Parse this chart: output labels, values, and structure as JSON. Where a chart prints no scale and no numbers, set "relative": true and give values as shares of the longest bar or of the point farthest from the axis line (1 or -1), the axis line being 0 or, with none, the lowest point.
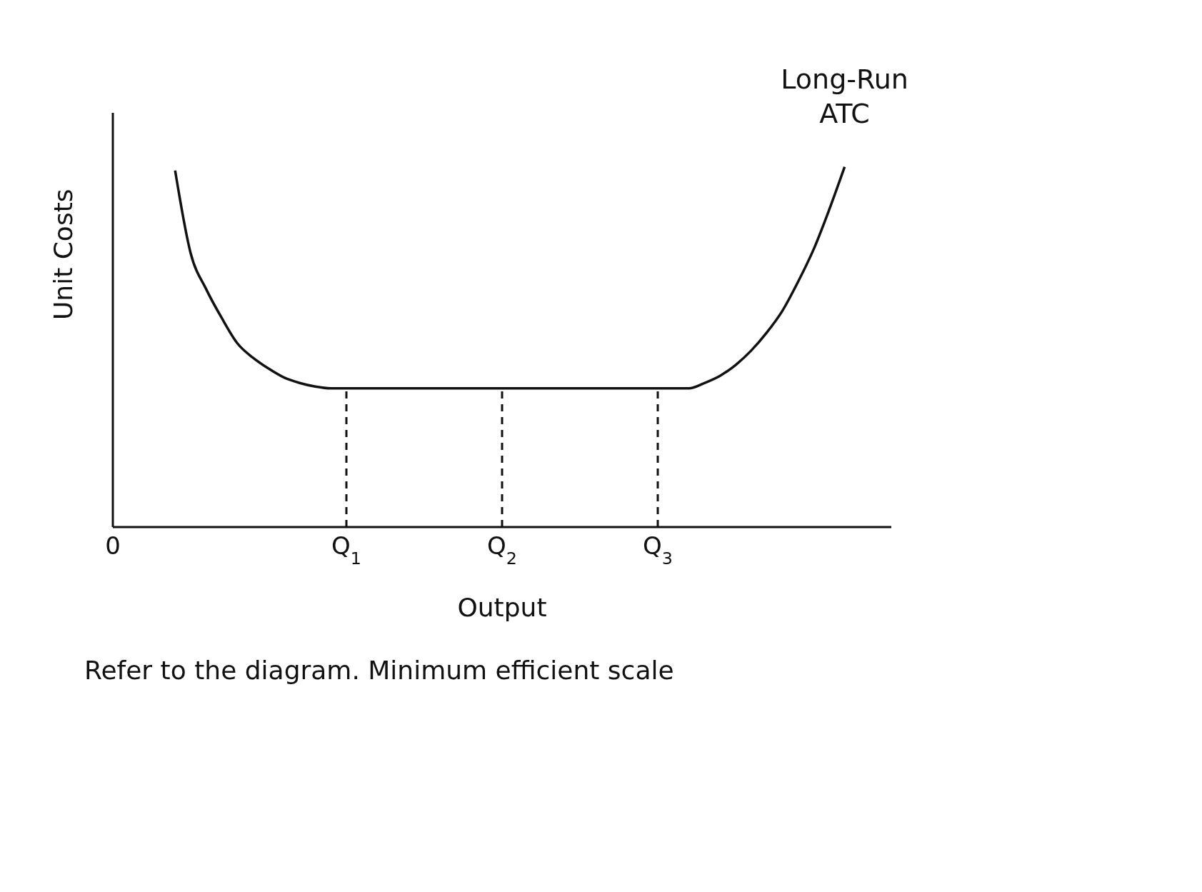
{
  "chart_data": {
    "type": "line",
    "relative": true,
    "xlabel": "Output",
    "ylabel": "Unit Costs",
    "categories": [
      "0",
      null,
      null,
      null,
      null,
      null,
      null,
      null,
      null,
      null,
      null,
      null,
      null,
      null,
      null,
      "Q$_{1}$",
      null,
      null,
      null,
      null,
      null,
      null,
      null,
      null,
      null,
      "Q$_{2}$",
      null,
      null,
      null,
      null,
      null,
      null,
      null,
      null,
      null,
      "Q$_{3}$",
      null,
      null,
      null,
      null,
      null,
      null,
      null,
      null,
      null,
      null,
      null,
      null,
      null,
      null,
      null
    ],
    "series": [
      {
        "name": "Long-Run ATC",
        "color": "#111111",
        "values": [
          null,
          null,
          null,
          null,
          0.99,
          0.76,
          0.66,
          0.58,
          0.51,
          0.47,
          0.44,
          0.415,
          0.4,
          0.39,
          0.385,
          0.385,
          0.385,
          0.385,
          0.385,
          0.385,
          0.385,
          0.385,
          0.385,
          0.385,
          0.385,
          0.385,
          0.385,
          0.385,
          0.385,
          0.385,
          0.385,
          0.385,
          0.385,
          0.385,
          0.385,
          0.385,
          0.385,
          0.385,
          0.4,
          0.42,
          0.45,
          0.49,
          0.54,
          0.6,
          0.68,
          0.77,
          0.88,
          1.0,
          null,
          null,
          null
        ]
      }
    ],
    "ref_lines": [
      {
        "axis": "x",
        "value": "Q$_{1}$",
        "line_style": "dashed",
        "color": "#111111"
      },
      {
        "axis": "x",
        "value": "Q$_{2}$",
        "line_style": "dashed",
        "color": "#111111"
      },
      {
        "axis": "x",
        "value": "Q$_{3}$",
        "line_style": "dashed",
        "color": "#111111"
      }
    ],
    "annotations": [
      "Refer to the diagram. Minimum efficient scale"
    ],
    "grid": false,
    "legend": false,
    "marker": "none",
    "line_style": "solid"
  }
}
